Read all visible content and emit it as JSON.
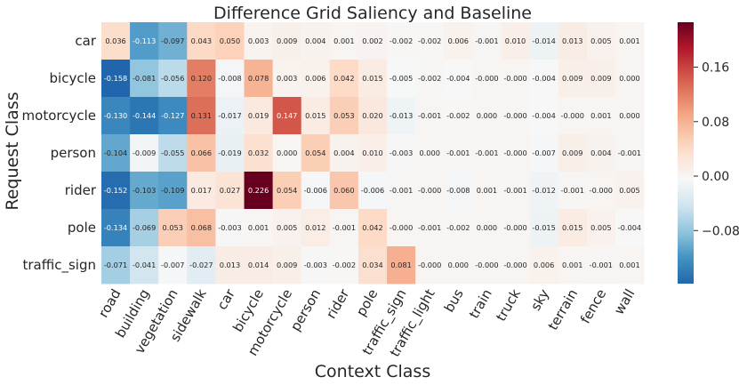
{
  "chart_data": {
    "type": "heatmap",
    "title": "Difference Grid Saliency and Baseline",
    "xlabel": "Context Class",
    "ylabel": "Request Class",
    "rows": [
      "car",
      "bicycle",
      "motorcycle",
      "person",
      "rider",
      "pole",
      "traffic_sign"
    ],
    "columns": [
      "road",
      "building",
      "vegetation",
      "sidewalk",
      "car",
      "bicycle",
      "motorcycle",
      "person",
      "rider",
      "pole",
      "traffic_sign",
      "traffic_light",
      "bus",
      "train",
      "truck",
      "sky",
      "terrain",
      "fence",
      "wall"
    ],
    "values": [
      [
        0.036,
        -0.113,
        -0.097,
        0.043,
        0.05,
        0.003,
        0.009,
        0.004,
        0.001,
        0.002,
        -0.002,
        -0.002,
        0.006,
        -0.001,
        0.01,
        -0.014,
        0.013,
        0.005,
        0.001
      ],
      [
        -0.158,
        -0.081,
        -0.056,
        0.12,
        -0.008,
        0.078,
        0.003,
        0.006,
        0.042,
        0.015,
        -0.005,
        -0.002,
        -0.004,
        -0.0,
        -0.0,
        -0.004,
        0.009,
        0.009,
        0.0
      ],
      [
        -0.13,
        -0.144,
        -0.127,
        0.131,
        -0.017,
        0.019,
        0.147,
        0.015,
        0.053,
        0.02,
        -0.013,
        -0.001,
        -0.002,
        0.0,
        -0.0,
        -0.004,
        -0.0,
        0.001,
        0.0
      ],
      [
        -0.104,
        -0.009,
        -0.055,
        0.066,
        -0.019,
        0.032,
        0.0,
        0.054,
        0.004,
        0.01,
        -0.003,
        0.0,
        -0.001,
        -0.001,
        -0.0,
        -0.007,
        0.009,
        0.004,
        -0.001
      ],
      [
        -0.152,
        -0.103,
        -0.109,
        0.017,
        0.027,
        0.226,
        0.054,
        -0.006,
        0.06,
        -0.006,
        -0.001,
        -0.0,
        -0.008,
        0.001,
        -0.001,
        -0.012,
        -0.001,
        -0.0,
        0.005
      ],
      [
        -0.134,
        -0.069,
        0.053,
        0.068,
        -0.003,
        0.001,
        0.005,
        0.012,
        -0.001,
        0.042,
        -0.0,
        -0.001,
        -0.002,
        0.0,
        -0.0,
        -0.015,
        0.015,
        0.005,
        -0.004
      ],
      [
        -0.071,
        -0.041,
        -0.007,
        -0.027,
        0.013,
        0.014,
        0.009,
        -0.003,
        -0.002,
        0.034,
        0.081,
        -0.0,
        0.0,
        -0.0,
        -0.0,
        0.006,
        0.001,
        -0.001,
        0.001
      ]
    ],
    "colorbar": {
      "colormap": "RdBu_r",
      "vmin": -0.158,
      "vmax": 0.226,
      "ticks": [
        -0.08,
        0.0,
        0.08,
        0.16
      ],
      "tick_labels": [
        "−0.08",
        "0.00",
        "0.08",
        "0.16"
      ]
    }
  }
}
